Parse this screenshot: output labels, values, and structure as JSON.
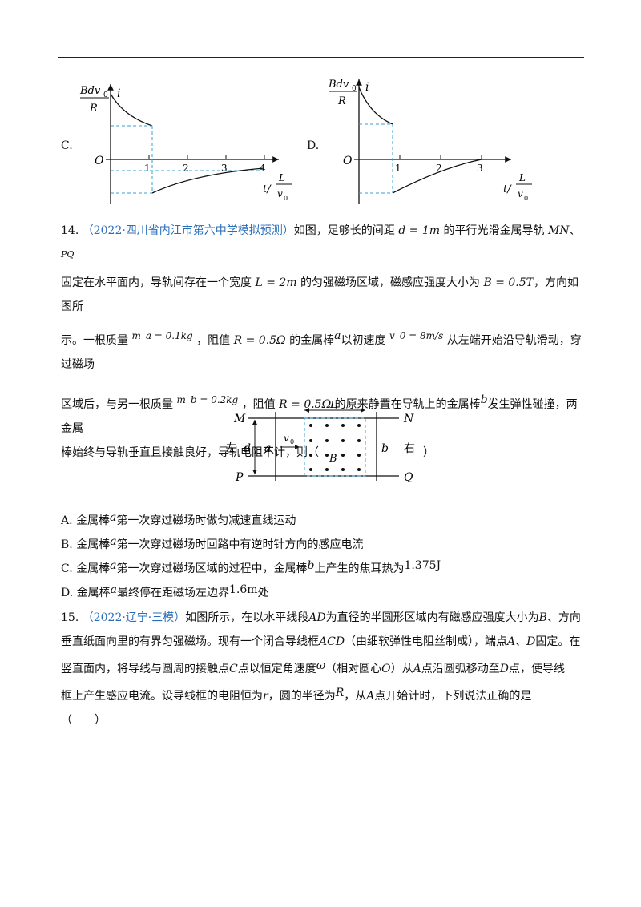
{
  "graphs": {
    "c": {
      "letter": "C.",
      "y_top": "Bdv",
      "y_sub": "0",
      "y_bot": "R",
      "y_axis": "i",
      "origin": "O",
      "ticks": [
        "1",
        "2",
        "3",
        "4"
      ],
      "x_axis_t": "t/",
      "x_frac_top": "L",
      "x_frac_bot": "v",
      "x_frac_sub": "0"
    },
    "d": {
      "letter": "D.",
      "y_top": "Bdv",
      "y_sub": "0",
      "y_bot": "R",
      "y_axis": "i",
      "origin": "O",
      "ticks": [
        "1",
        "2",
        "3"
      ],
      "x_axis_t": "t/",
      "x_frac_top": "L",
      "x_frac_bot": "v",
      "x_frac_sub": "0"
    }
  },
  "q14": {
    "number": "14.",
    "source": "（2022·四川省内江市第六中学模拟预测）",
    "line1": "如图，足够长的间距",
    "d_val": "d = 1m",
    "line1b": "的平行光滑金属导轨",
    "mn": "MN",
    "sep": "、",
    "pq": "PQ",
    "line2a": "固定在水平面内，导轨间存在一个宽度",
    "L_val": "L = 2m",
    "line2b": "的匀强磁场区域，磁感应强度大小为",
    "B_val": "B = 0.5T",
    "line2c": "，方向如图所",
    "line3a": "示。一根质量",
    "ma_val": "m_a = 0.1kg",
    "comma1": "，阻值",
    "R_val1": "R = 0.5Ω",
    "line3b": "的金属棒",
    "a_sym": "a",
    "line3c": "以初速度",
    "v0_val": "v_0 = 8m/s",
    "line3d": "从左端开始沿导轨滑动，穿过磁场",
    "line4a": "区域后，与另一根质量",
    "mb_val": "m_b = 0.2kg",
    "comma2": "，阻值",
    "R_val2": "R = 0.5Ω",
    "line4b": "的原来静置在导轨上的金属棒",
    "b_sym": "b",
    "line4c": "发生弹性碰撞，两金属",
    "line5": "棒始终与导轨垂直且接触良好，导轨电阻不计，则（",
    "paren_close": "）",
    "figure": {
      "M": "M",
      "N": "N",
      "P": "P",
      "Q": "Q",
      "L": "L",
      "left": "左",
      "right": "右",
      "d": "d",
      "a": "a",
      "b": "b",
      "v0": "v",
      "v0_sub": "0",
      "B": "B"
    },
    "options": [
      {
        "letter": "A.",
        "pre": "金属棒",
        "sym": "a",
        "post": "第一次穿过磁场时做匀减速直线运动"
      },
      {
        "letter": "B.",
        "pre": "金属棒",
        "sym": "a",
        "post": "第一次穿过磁场时回路中有逆时针方向的感应电流"
      },
      {
        "letter": "C.",
        "pre": "金属棒",
        "sym": "a",
        "post": "第一次穿过磁场区域的过程中，金属棒",
        "sym2": "b",
        "post2": "上产生的焦耳热为",
        "val": "1.375J"
      },
      {
        "letter": "D.",
        "pre": "金属棒",
        "sym": "a",
        "post": "最终停在距磁场左边界",
        "val": "1.6m",
        "post2": "处"
      }
    ]
  },
  "q15": {
    "number": "15.",
    "source": "（2022·辽宁·三模）",
    "line1": "如图所示，在以水平线段",
    "AD": "AD",
    "line1b": "为直径的半圆形区域内有磁感应强度大小为",
    "B": "B",
    "line1c": "、方向",
    "line2a": "垂直纸面向里的有界匀强磁场。现有一个闭合导线框",
    "ACD": "ACD",
    "line2b": "（由细软弹性电阻丝制成），端点",
    "A": "A",
    "sep": "、",
    "D": "D",
    "line2c": "固定。在",
    "line3a": "竖直面内，将导线与圆周的接触点",
    "C": "C",
    "line3b": "点以恒定角速度",
    "omega": "ω",
    "line3c": "（相对圆心",
    "O": "O",
    "line3d": "）从",
    "A2": "A",
    "line3e": "点沿圆弧移动至",
    "D2": "D",
    "line3f": "点，使导线",
    "line4a": "框上产生感应电流。设导线框的电阻恒为",
    "r": "r",
    "line4b": "，圆的半径为",
    "R": "R",
    "line4c": "，从",
    "A3": "A",
    "line4d": "点开始计时，下列说法正确的是",
    "line5": "（　　）"
  }
}
